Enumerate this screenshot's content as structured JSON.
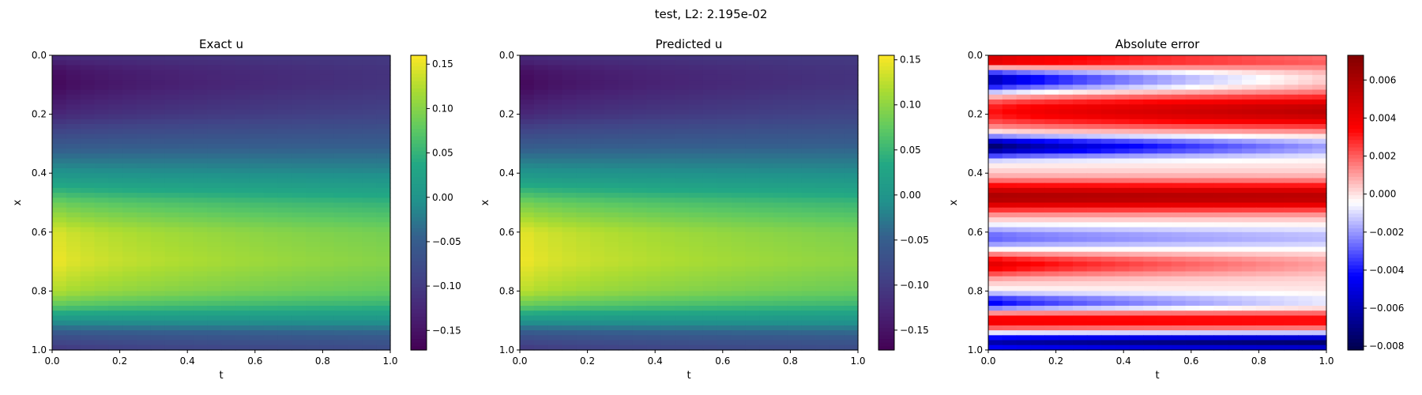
{
  "suptitle": "test, L2: 2.195e-02",
  "chart_data": [
    {
      "type": "heatmap",
      "title": "Exact u",
      "xlabel": "t",
      "ylabel": "x",
      "xlim": [
        0.0,
        1.0
      ],
      "ylim": [
        1.0,
        0.0
      ],
      "xticks": [
        "0.0",
        "0.2",
        "0.4",
        "0.6",
        "0.8",
        "1.0"
      ],
      "yticks": [
        "0.0",
        "0.2",
        "0.4",
        "0.6",
        "0.8",
        "1.0"
      ],
      "colormap": "viridis",
      "colorbar": {
        "range": [
          -0.172,
          0.16
        ],
        "ticks": [
          0.15,
          0.1,
          0.05,
          0.0,
          -0.05,
          -0.1,
          -0.15
        ],
        "tick_labels": [
          "0.15",
          "0.10",
          "0.05",
          "0.00",
          "−0.05",
          "−0.10",
          "−0.15"
        ]
      },
      "profile_x": [
        0.0,
        0.05,
        0.1,
        0.2,
        0.3,
        0.4,
        0.5,
        0.6,
        0.7,
        0.8,
        0.85,
        0.9,
        0.95,
        1.0
      ],
      "profile_u_t0": [
        -0.12,
        -0.16,
        -0.17,
        -0.13,
        -0.06,
        0.0,
        0.09,
        0.15,
        0.16,
        0.13,
        0.08,
        0.0,
        -0.07,
        -0.11
      ],
      "profile_u_t1": [
        -0.1,
        -0.11,
        -0.11,
        -0.09,
        -0.05,
        -0.01,
        0.05,
        0.09,
        0.1,
        0.08,
        0.05,
        0.0,
        -0.05,
        -0.08
      ]
    },
    {
      "type": "heatmap",
      "title": "Predicted u",
      "xlabel": "t",
      "ylabel": "x",
      "xlim": [
        0.0,
        1.0
      ],
      "ylim": [
        1.0,
        0.0
      ],
      "xticks": [
        "0.0",
        "0.2",
        "0.4",
        "0.6",
        "0.8",
        "1.0"
      ],
      "yticks": [
        "0.0",
        "0.2",
        "0.4",
        "0.6",
        "0.8",
        "1.0"
      ],
      "colormap": "viridis",
      "colorbar": {
        "range": [
          -0.172,
          0.155
        ],
        "ticks": [
          0.15,
          0.1,
          0.05,
          0.0,
          -0.05,
          -0.1,
          -0.15
        ],
        "tick_labels": [
          "0.15",
          "0.10",
          "0.05",
          "0.00",
          "−0.05",
          "−0.10",
          "−0.15"
        ]
      },
      "profile_x": [
        0.0,
        0.05,
        0.1,
        0.2,
        0.3,
        0.4,
        0.5,
        0.6,
        0.7,
        0.8,
        0.85,
        0.9,
        0.95,
        1.0
      ],
      "profile_u_t0": [
        -0.12,
        -0.16,
        -0.17,
        -0.13,
        -0.06,
        0.0,
        0.09,
        0.15,
        0.155,
        0.13,
        0.08,
        0.0,
        -0.07,
        -0.11
      ],
      "profile_u_t1": [
        -0.1,
        -0.11,
        -0.11,
        -0.09,
        -0.05,
        -0.01,
        0.05,
        0.09,
        0.1,
        0.08,
        0.05,
        0.0,
        -0.05,
        -0.08
      ]
    },
    {
      "type": "heatmap",
      "title": "Absolute error",
      "xlabel": "t",
      "ylabel": "x",
      "xlim": [
        0.0,
        1.0
      ],
      "ylim": [
        1.0,
        0.0
      ],
      "xticks": [
        "0.0",
        "0.2",
        "0.4",
        "0.6",
        "0.8",
        "1.0"
      ],
      "yticks": [
        "0.0",
        "0.2",
        "0.4",
        "0.6",
        "0.8",
        "1.0"
      ],
      "colormap": "seismic",
      "colorbar": {
        "range": [
          -0.0082,
          0.0073
        ],
        "ticks": [
          0.006,
          0.004,
          0.002,
          0.0,
          -0.002,
          -0.004,
          -0.006,
          -0.008
        ],
        "tick_labels": [
          "0.006",
          "0.004",
          "0.002",
          "0.000",
          "−0.002",
          "−0.004",
          "−0.006",
          "−0.008"
        ]
      },
      "error_bands": [
        {
          "x": 0.02,
          "width": 0.035,
          "e_t0": 0.006,
          "e_t1": 0.002
        },
        {
          "x": 0.08,
          "width": 0.045,
          "e_t0": -0.007,
          "e_t1": 0.0
        },
        {
          "x": 0.19,
          "width": 0.06,
          "e_t0": 0.003,
          "e_t1": 0.0055
        },
        {
          "x": 0.31,
          "width": 0.035,
          "e_t0": -0.008,
          "e_t1": -0.002
        },
        {
          "x": 0.48,
          "width": 0.05,
          "e_t0": 0.006,
          "e_t1": 0.0055
        },
        {
          "x": 0.62,
          "width": 0.04,
          "e_t0": -0.003,
          "e_t1": -0.0015
        },
        {
          "x": 0.71,
          "width": 0.04,
          "e_t0": 0.0045,
          "e_t1": 0.001
        },
        {
          "x": 0.84,
          "width": 0.03,
          "e_t0": -0.005,
          "e_t1": -0.001
        },
        {
          "x": 0.9,
          "width": 0.035,
          "e_t0": 0.004,
          "e_t1": 0.0035
        },
        {
          "x": 0.975,
          "width": 0.03,
          "e_t0": -0.006,
          "e_t1": -0.0075
        }
      ]
    }
  ]
}
